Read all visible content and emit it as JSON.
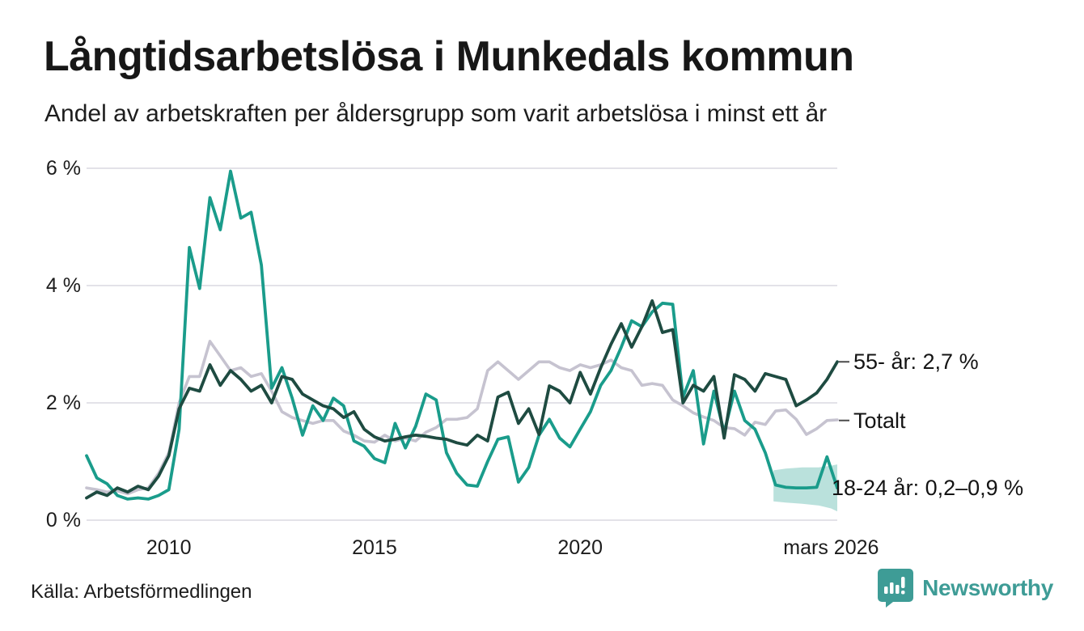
{
  "header": {
    "title": "Långtidsarbetslösa i Munkedals kommun",
    "subtitle": "Andel av arbetskraften per åldersgrupp som varit arbetslösa i minst ett år"
  },
  "footer": {
    "source": "Källa: Arbetsförmedlingen",
    "brand": "Newsworthy"
  },
  "colors": {
    "youth": "#1a9c8b",
    "senior": "#1e4b41",
    "total": "#c6c3d0",
    "band": "rgba(26,156,139,0.30)",
    "grid": "#e3e2e8",
    "annotation_tick": "#4a4a4a",
    "brand_teal": "#3e9c96"
  },
  "chart_data": {
    "type": "line",
    "title": "Långtidsarbetslösa i Munkedals kommun",
    "xlabel": "",
    "ylabel": "",
    "xlim": [
      2008.0,
      2026.25
    ],
    "ylim": [
      0,
      6
    ],
    "grid": true,
    "legend_position": "right-annotations",
    "x_start": 2008.0,
    "x_step": 0.25,
    "y_ticks": [
      {
        "value": 0,
        "label": "0 %"
      },
      {
        "value": 2,
        "label": "2 %"
      },
      {
        "value": 4,
        "label": "4 %"
      },
      {
        "value": 6,
        "label": "6 %"
      }
    ],
    "x_ticks": [
      {
        "value": 2010,
        "label": "2010"
      },
      {
        "value": 2015,
        "label": "2015"
      },
      {
        "value": 2020,
        "label": "2020"
      },
      {
        "value": 2026.1,
        "label": "mars 2026"
      }
    ],
    "series": [
      {
        "name": "Totalt",
        "color_key": "total",
        "stroke_width": 3.6,
        "values": [
          0.55,
          0.52,
          0.48,
          0.5,
          0.45,
          0.52,
          0.55,
          0.8,
          1.15,
          2.0,
          2.45,
          2.45,
          3.05,
          2.8,
          2.55,
          2.6,
          2.45,
          2.5,
          2.2,
          1.85,
          1.75,
          1.7,
          1.65,
          1.7,
          1.7,
          1.52,
          1.45,
          1.35,
          1.33,
          1.45,
          1.35,
          1.4,
          1.35,
          1.5,
          1.58,
          1.72,
          1.72,
          1.75,
          1.9,
          2.55,
          2.7,
          2.55,
          2.4,
          2.55,
          2.7,
          2.7,
          2.6,
          2.55,
          2.65,
          2.6,
          2.65,
          2.73,
          2.6,
          2.55,
          2.3,
          2.33,
          2.3,
          2.05,
          1.95,
          1.83,
          1.76,
          1.7,
          1.58,
          1.56,
          1.45,
          1.67,
          1.63,
          1.86,
          1.88,
          1.72,
          1.46,
          1.56,
          1.7,
          1.71
        ]
      },
      {
        "name": "18-24 år",
        "color_key": "youth",
        "stroke_width": 3.8,
        "values": [
          1.1,
          0.72,
          0.62,
          0.42,
          0.36,
          0.38,
          0.36,
          0.42,
          0.52,
          1.55,
          4.65,
          3.95,
          5.5,
          4.95,
          5.95,
          5.15,
          5.25,
          4.35,
          2.25,
          2.6,
          2.08,
          1.45,
          1.95,
          1.7,
          2.08,
          1.95,
          1.35,
          1.26,
          1.05,
          0.98,
          1.65,
          1.23,
          1.6,
          2.15,
          2.05,
          1.15,
          0.8,
          0.6,
          0.58,
          1.0,
          1.38,
          1.42,
          0.65,
          0.9,
          1.45,
          1.72,
          1.4,
          1.25,
          1.55,
          1.85,
          2.3,
          2.55,
          2.95,
          3.4,
          3.3,
          3.55,
          3.7,
          3.68,
          2.1,
          2.55,
          1.3,
          2.2,
          1.5,
          2.2,
          1.7,
          1.55,
          1.15,
          0.6,
          0.56,
          0.55,
          0.55,
          0.56,
          1.08,
          0.55
        ]
      },
      {
        "name": "55- år",
        "color_key": "senior",
        "stroke_width": 3.8,
        "values": [
          0.38,
          0.48,
          0.42,
          0.55,
          0.48,
          0.58,
          0.52,
          0.75,
          1.1,
          1.9,
          2.25,
          2.2,
          2.65,
          2.3,
          2.55,
          2.4,
          2.2,
          2.3,
          2.0,
          2.45,
          2.4,
          2.15,
          2.05,
          1.95,
          1.9,
          1.75,
          1.85,
          1.55,
          1.42,
          1.35,
          1.38,
          1.42,
          1.45,
          1.43,
          1.4,
          1.38,
          1.32,
          1.28,
          1.45,
          1.35,
          2.1,
          2.18,
          1.65,
          1.9,
          1.46,
          2.29,
          2.2,
          2.0,
          2.52,
          2.15,
          2.6,
          3.0,
          3.35,
          2.95,
          3.3,
          3.74,
          3.2,
          3.25,
          2.0,
          2.3,
          2.2,
          2.45,
          1.4,
          2.48,
          2.4,
          2.2,
          2.5,
          2.45,
          2.4,
          1.95,
          2.05,
          2.17,
          2.4,
          2.7
        ]
      }
    ],
    "band": {
      "series": "18-24 år",
      "color_key": "band",
      "x": [
        2024.7,
        2025.0,
        2025.4,
        2025.8,
        2026.1,
        2026.25
      ],
      "upper": [
        0.85,
        0.88,
        0.9,
        0.9,
        0.93,
        0.95
      ],
      "lower": [
        0.32,
        0.3,
        0.28,
        0.25,
        0.2,
        0.15
      ]
    },
    "annotations": [
      {
        "label": "55- år: 2,7 %",
        "value": 2.7,
        "tick": true
      },
      {
        "label": "Totalt",
        "value": 1.7,
        "tick": true
      },
      {
        "label": "18-24 år: 0,2–0,9 %",
        "value": 0.55,
        "tick": false
      }
    ]
  }
}
